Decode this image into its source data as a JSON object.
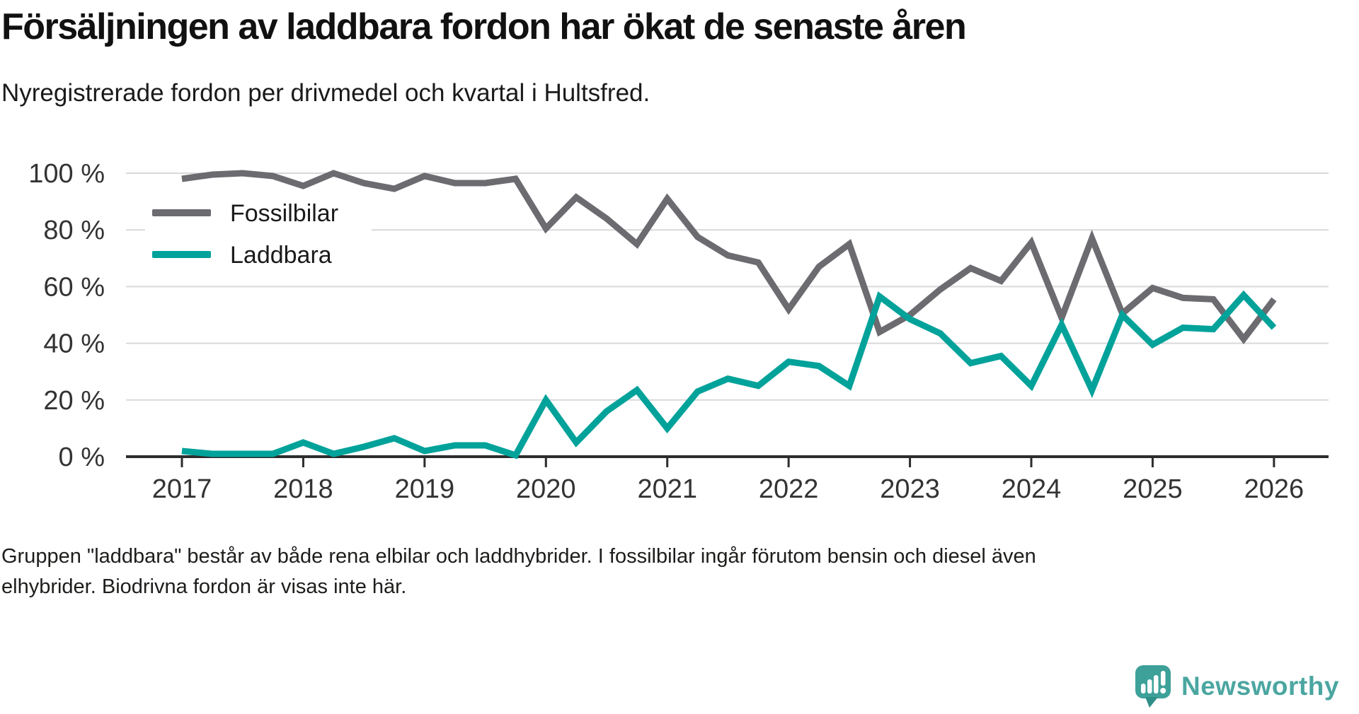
{
  "header": {
    "title": "Försäljningen av laddbara fordon har ökat de senaste åren",
    "subtitle": "Nyregistrerade fordon per drivmedel och kvartal i Hultsfred."
  },
  "footnote": {
    "lines": [
      "Gruppen \"laddbara\" består av både rena elbilar och laddhybrider. I fossilbilar ingår förutom bensin och diesel även",
      "elhybrider. Biodrivna fordon är visas inte här."
    ]
  },
  "brand": {
    "name": "Newsworthy",
    "text_color": "#4ba6a1",
    "icon_color": "#3da19a",
    "icon_tail_color": "#2f8e88"
  },
  "chart_data": {
    "type": "line",
    "frequency": "quarterly",
    "x_start": "2017-Q1",
    "x_end": "2026-Q1",
    "x_tick_labels": [
      "2017",
      "2018",
      "2019",
      "2020",
      "2021",
      "2022",
      "2023",
      "2024",
      "2025",
      "2026"
    ],
    "y_tick_labels": [
      "0 %",
      "20 %",
      "40 %",
      "60 %",
      "80 %",
      "100 %"
    ],
    "y_tick_values": [
      0,
      20,
      40,
      60,
      80,
      100
    ],
    "ylim": [
      0,
      100
    ],
    "unit": "%",
    "grid": "horizontal",
    "grid_color": "#d9d9d9",
    "axis_color": "#2d2d2d",
    "legend_position": "top-left-inside",
    "series": [
      {
        "name": "Fossilbilar",
        "color": "#6b6b70",
        "values": [
          98,
          99.5,
          100,
          99,
          95.5,
          100,
          96.5,
          94.5,
          99,
          96.5,
          96.5,
          98,
          80.5,
          91.5,
          84,
          75,
          91,
          77.5,
          71,
          68.5,
          52,
          67,
          75,
          44,
          50,
          59,
          66.5,
          62,
          75.5,
          49,
          77,
          50.5,
          59.5,
          56,
          55.5,
          41.5,
          55.5
        ]
      },
      {
        "name": "Laddbara",
        "color": "#00a29a",
        "values": [
          2,
          1,
          1,
          1,
          5,
          1,
          3.5,
          6.5,
          2,
          4,
          4,
          0.5,
          20,
          5,
          16,
          23.5,
          10,
          23,
          27.5,
          25,
          33.5,
          32,
          25,
          56.5,
          48.5,
          43.5,
          33,
          35.5,
          25,
          46.5,
          23.5,
          50,
          39.5,
          45.5,
          45,
          57,
          45.5
        ]
      }
    ]
  }
}
